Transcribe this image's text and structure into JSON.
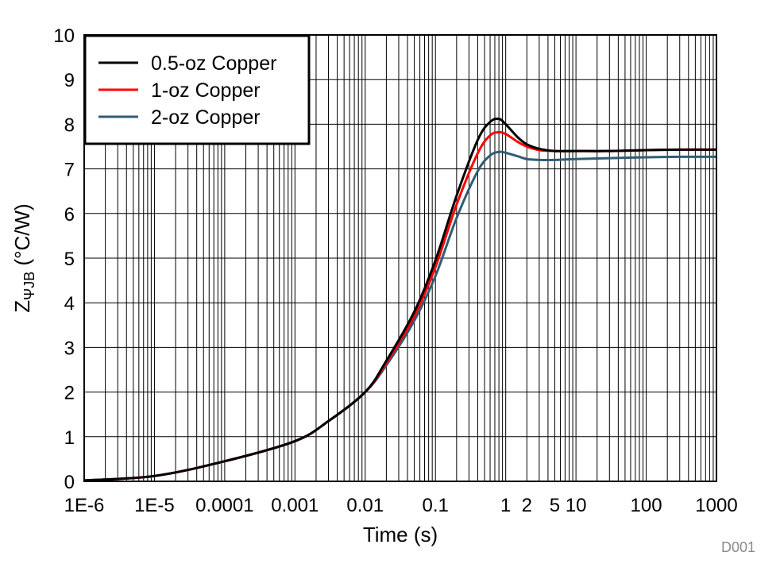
{
  "chart_data": {
    "type": "line",
    "xlabel": "Time (s)",
    "ylabel": {
      "main": "Z",
      "sub": "ΨJB",
      "unit": " (°C/W)"
    },
    "x_scale": "log",
    "xlim": [
      1e-06,
      1000
    ],
    "ylim": [
      0,
      10
    ],
    "grid": true,
    "legend_position": "top-left",
    "x_ticks": [
      {
        "value": 1e-06,
        "label": "1E-6"
      },
      {
        "value": 1e-05,
        "label": "1E-5"
      },
      {
        "value": 0.0001,
        "label": "0.0001"
      },
      {
        "value": 0.001,
        "label": "0.001"
      },
      {
        "value": 0.01,
        "label": "0.01"
      },
      {
        "value": 0.1,
        "label": "0.1"
      },
      {
        "value": 1,
        "label": "1"
      },
      {
        "value": 2,
        "label": "2"
      },
      {
        "value": 5,
        "label": "5"
      },
      {
        "value": 10,
        "label": "10"
      },
      {
        "value": 100,
        "label": "100"
      },
      {
        "value": 1000,
        "label": "1000"
      }
    ],
    "y_ticks": [
      {
        "value": 0,
        "label": "0"
      },
      {
        "value": 1,
        "label": "1"
      },
      {
        "value": 2,
        "label": "2"
      },
      {
        "value": 3,
        "label": "3"
      },
      {
        "value": 4,
        "label": "4"
      },
      {
        "value": 5,
        "label": "5"
      },
      {
        "value": 6,
        "label": "6"
      },
      {
        "value": 7,
        "label": "7"
      },
      {
        "value": 8,
        "label": "8"
      },
      {
        "value": 9,
        "label": "9"
      },
      {
        "value": 10,
        "label": "10"
      }
    ],
    "series": [
      {
        "name": "0.5-oz Copper",
        "color": "#000000",
        "x": [
          1e-06,
          1e-05,
          0.0001,
          0.001,
          0.003,
          0.01,
          0.02,
          0.05,
          0.1,
          0.2,
          0.4,
          0.6,
          0.8,
          1,
          1.5,
          2,
          3,
          5,
          10,
          30,
          100,
          300,
          1000
        ],
        "y": [
          0.02,
          0.12,
          0.45,
          0.9,
          1.35,
          2.0,
          2.7,
          3.8,
          4.95,
          6.4,
          7.65,
          8.05,
          8.12,
          8.0,
          7.7,
          7.55,
          7.45,
          7.4,
          7.4,
          7.4,
          7.42,
          7.43,
          7.43
        ]
      },
      {
        "name": "1-oz Copper",
        "color": "#ff0000",
        "x": [
          1e-06,
          1e-05,
          0.0001,
          0.001,
          0.003,
          0.01,
          0.02,
          0.05,
          0.1,
          0.2,
          0.4,
          0.6,
          0.8,
          1,
          1.5,
          2,
          3,
          5,
          10,
          30,
          100,
          300,
          1000
        ],
        "y": [
          0.02,
          0.12,
          0.45,
          0.9,
          1.35,
          2.0,
          2.65,
          3.7,
          4.8,
          6.2,
          7.35,
          7.75,
          7.82,
          7.78,
          7.6,
          7.5,
          7.42,
          7.4,
          7.4,
          7.4,
          7.42,
          7.43,
          7.43
        ]
      },
      {
        "name": "2-oz Copper",
        "color": "#2f5d73",
        "x": [
          1e-06,
          1e-05,
          0.0001,
          0.001,
          0.003,
          0.01,
          0.02,
          0.05,
          0.1,
          0.2,
          0.4,
          0.6,
          0.8,
          1,
          1.5,
          2,
          3,
          5,
          10,
          30,
          100,
          300,
          1000
        ],
        "y": [
          0.02,
          0.12,
          0.45,
          0.9,
          1.35,
          2.0,
          2.6,
          3.6,
          4.6,
          5.9,
          6.95,
          7.3,
          7.38,
          7.36,
          7.28,
          7.22,
          7.2,
          7.2,
          7.22,
          7.24,
          7.26,
          7.27,
          7.27
        ]
      }
    ],
    "annotation": "D001"
  }
}
